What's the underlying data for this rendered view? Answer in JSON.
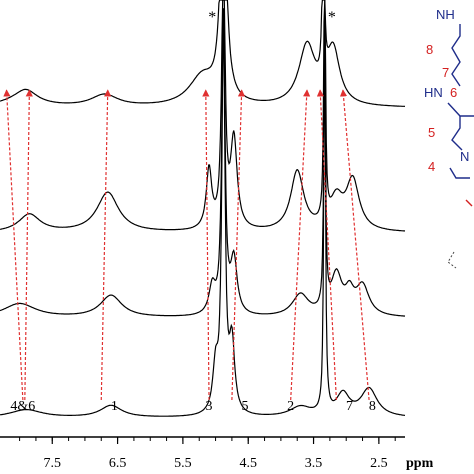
{
  "chart_data": {
    "type": "line",
    "xlabel": "ppm",
    "x_reversed": true,
    "xlim": [
      8.3,
      2.1
    ],
    "xticks": [
      "7.5",
      "6.5",
      "5.5",
      "4.5",
      "3.5",
      "2.5"
    ],
    "spectra": [
      {
        "offset": 0,
        "peaks": [
          {
            "x": 7.9,
            "h": 8,
            "w": 0.3
          },
          {
            "x": 6.6,
            "h": 12,
            "w": 0.2
          },
          {
            "x": 5.0,
            "h": 45,
            "w": 0.05
          },
          {
            "x": 4.88,
            "h": 380,
            "w": 0.03
          },
          {
            "x": 4.75,
            "h": 70,
            "w": 0.05
          },
          {
            "x": 3.7,
            "h": 10,
            "w": 0.2
          },
          {
            "x": 3.33,
            "h": 400,
            "w": 0.015
          },
          {
            "x": 3.05,
            "h": 22,
            "w": 0.12
          },
          {
            "x": 2.65,
            "h": 28,
            "w": 0.15
          }
        ]
      },
      {
        "offset": 1,
        "peaks": [
          {
            "x": 8.0,
            "h": 14,
            "w": 0.3
          },
          {
            "x": 6.6,
            "h": 22,
            "w": 0.2
          },
          {
            "x": 5.05,
            "h": 28,
            "w": 0.06
          },
          {
            "x": 4.88,
            "h": 300,
            "w": 0.03
          },
          {
            "x": 4.72,
            "h": 55,
            "w": 0.06
          },
          {
            "x": 3.7,
            "h": 22,
            "w": 0.15
          },
          {
            "x": 3.33,
            "h": 300,
            "w": 0.015
          },
          {
            "x": 3.15,
            "h": 40,
            "w": 0.1
          },
          {
            "x": 2.95,
            "h": 20,
            "w": 0.08
          },
          {
            "x": 2.75,
            "h": 30,
            "w": 0.12
          }
        ]
      },
      {
        "offset": 2,
        "peaks": [
          {
            "x": 7.85,
            "h": 18,
            "w": 0.2
          },
          {
            "x": 6.65,
            "h": 40,
            "w": 0.2
          },
          {
            "x": 5.1,
            "h": 60,
            "w": 0.05
          },
          {
            "x": 4.88,
            "h": 280,
            "w": 0.03
          },
          {
            "x": 4.72,
            "h": 90,
            "w": 0.06
          },
          {
            "x": 3.75,
            "h": 60,
            "w": 0.12
          },
          {
            "x": 3.33,
            "h": 280,
            "w": 0.015
          },
          {
            "x": 3.15,
            "h": 30,
            "w": 0.12
          },
          {
            "x": 2.9,
            "h": 50,
            "w": 0.12
          }
        ]
      },
      {
        "offset": 3,
        "peaks": [
          {
            "x": 8.0,
            "h": 6,
            "w": 0.4
          },
          {
            "x": 7.9,
            "h": 12,
            "w": 0.2
          },
          {
            "x": 6.7,
            "h": 12,
            "w": 0.25
          },
          {
            "x": 5.2,
            "h": 30,
            "w": 0.25
          },
          {
            "x": 4.88,
            "h": 260,
            "w": 0.05
          },
          {
            "x": 3.6,
            "h": 60,
            "w": 0.15
          },
          {
            "x": 3.35,
            "h": 250,
            "w": 0.015
          },
          {
            "x": 3.2,
            "h": 55,
            "w": 0.12
          }
        ]
      }
    ],
    "peak_labels": [
      {
        "text": "4&6",
        "x": 7.95
      },
      {
        "text": "1",
        "x": 6.55
      },
      {
        "text": "3",
        "x": 5.1
      },
      {
        "text": "5",
        "x": 4.55
      },
      {
        "text": "2",
        "x": 3.85
      },
      {
        "text": "7",
        "x": 2.95
      },
      {
        "text": "8",
        "x": 2.6
      }
    ],
    "stars": [
      {
        "text": "*",
        "x": 5.05
      },
      {
        "text": "*",
        "x": 3.22
      }
    ],
    "arrows": [
      {
        "from_x": 7.95,
        "to_x": 8.2
      },
      {
        "from_x": 7.92,
        "to_x": 7.85
      },
      {
        "from_x": 6.75,
        "to_x": 6.65
      },
      {
        "from_x": 5.1,
        "to_x": 5.15
      },
      {
        "from_x": 4.75,
        "to_x": 4.6
      },
      {
        "from_x": 3.85,
        "to_x": 3.6
      },
      {
        "from_x": 3.15,
        "to_x": 3.4
      },
      {
        "from_x": 2.65,
        "to_x": 3.05
      }
    ],
    "colors": {
      "trace": "#000000",
      "arrow": "#e03030",
      "struct_red": "#d42020",
      "struct_blue": "#1f2d8a"
    }
  },
  "structure": {
    "atom_labels": [
      "NH",
      "HN",
      "N"
    ],
    "number_labels": [
      "8",
      "7",
      "6",
      "5",
      "4"
    ]
  }
}
